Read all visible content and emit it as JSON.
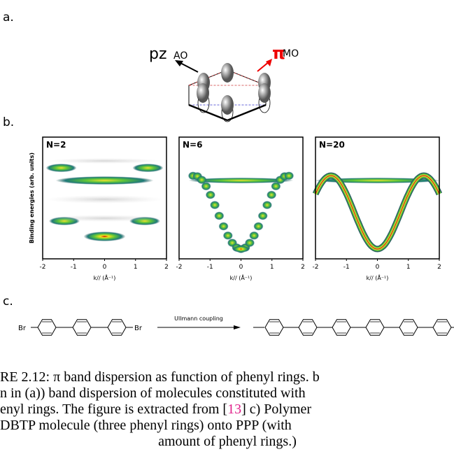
{
  "labels": {
    "a": "a.",
    "b": "b.",
    "c": "c."
  },
  "orbital": {
    "ao_symbol": "pz",
    "ao": "AO",
    "mo_symbol": "π",
    "mo": "MO"
  },
  "ylabel": "Binding energies (arb. units)",
  "panels": [
    {
      "title": "N=2",
      "xlabel": "k// (Å⁻¹)",
      "xlim": [
        -2,
        2
      ],
      "xticks": [
        -2,
        -1,
        0,
        1,
        2
      ]
    },
    {
      "title": "N=6",
      "xlabel": "k// (Å⁻¹)",
      "xlim": [
        -2,
        2
      ],
      "xticks": [
        -2,
        -1,
        0,
        1,
        2
      ]
    },
    {
      "title": "N=20",
      "xlabel": "k// (Å⁻¹)",
      "xlim": [
        -2,
        2
      ],
      "xticks": [
        -2,
        -1,
        0,
        1,
        2
      ]
    }
  ],
  "reaction": {
    "br_left": "Br",
    "br_right": "Br",
    "arrow_label": "Ullmann coupling"
  },
  "caption": {
    "line1": "RE 2.12: π band dispersion as function of phenyl rings. b",
    "line2": "n in (a)) band dispersion of molecules constituted with",
    "line3_before": "enyl rings. The figure is extracted from [",
    "ref": "13",
    "line3_after": "] c) Polymer",
    "line4": "DBTP molecule (three phenyl rings) onto PPP (with",
    "line5": "amount of phenyl rings.)"
  }
}
